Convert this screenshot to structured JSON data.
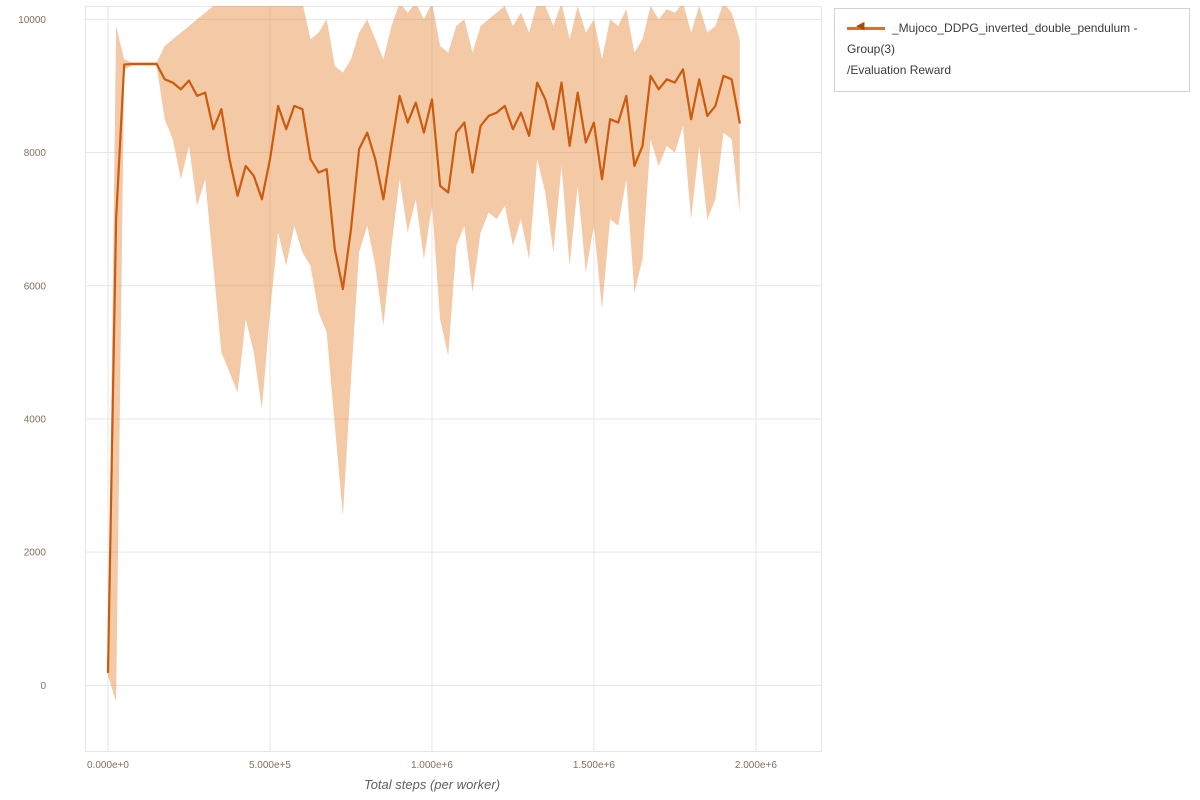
{
  "legend": {
    "marker": "◀",
    "line1": "_Mujoco_DDPG_inverted_double_pendulum - Group(3)",
    "line2": "/Evaluation Reward"
  },
  "colors": {
    "grid": "#e6e6e6",
    "tick_label": "#83705e",
    "axis_title": "#5f5f5f",
    "legend_border": "#d3d3d3",
    "legend_text": "#3b3b3b",
    "marker_color": "#a04d08"
  },
  "chart_data": {
    "type": "line",
    "title": "",
    "xlabel": "Total steps (per worker)",
    "ylabel": "",
    "grid": true,
    "legend_position": "top-right-outside",
    "xlim": [
      -71000,
      2204000
    ],
    "ylim": [
      -1000,
      10200
    ],
    "x_ticks": {
      "values": [
        0,
        500000,
        1000000,
        1500000,
        2000000
      ],
      "labels": [
        "0.000e+0",
        "5.000e+5",
        "1.000e+6",
        "1.500e+6",
        "2.000e+6"
      ]
    },
    "y_ticks": {
      "values": [
        0,
        2000,
        4000,
        6000,
        8000,
        10000
      ],
      "labels": [
        "0",
        "2000",
        "4000",
        "6000",
        "8000",
        "10000"
      ]
    },
    "series": [
      {
        "name": "_Mujoco_DDPG_inverted_double_pendulum - Group(3)/Evaluation Reward",
        "color": "#cb5b0e",
        "line_width": 2.2,
        "band_color": "#e5873a",
        "band_opacity": 0.45,
        "x": [
          0,
          25000,
          50000,
          75000,
          100000,
          125000,
          150000,
          175000,
          200000,
          225000,
          250000,
          275000,
          300000,
          325000,
          350000,
          375000,
          400000,
          425000,
          450000,
          475000,
          500000,
          525000,
          550000,
          575000,
          600000,
          625000,
          650000,
          675000,
          700000,
          725000,
          750000,
          775000,
          800000,
          825000,
          850000,
          875000,
          900000,
          925000,
          950000,
          975000,
          1000000,
          1025000,
          1050000,
          1075000,
          1100000,
          1125000,
          1150000,
          1175000,
          1200000,
          1225000,
          1250000,
          1275000,
          1300000,
          1325000,
          1350000,
          1375000,
          1400000,
          1425000,
          1450000,
          1475000,
          1500000,
          1525000,
          1550000,
          1575000,
          1600000,
          1625000,
          1650000,
          1675000,
          1700000,
          1725000,
          1750000,
          1775000,
          1800000,
          1825000,
          1850000,
          1875000,
          1900000,
          1925000,
          1950000
        ],
        "mean": [
          200,
          7000,
          9320,
          9330,
          9330,
          9330,
          9330,
          9100,
          9050,
          8950,
          9080,
          8850,
          8900,
          8350,
          8650,
          7900,
          7350,
          7800,
          7650,
          7300,
          7900,
          8700,
          8350,
          8700,
          8650,
          7900,
          7700,
          7750,
          6550,
          5950,
          6850,
          8050,
          8300,
          7900,
          7300,
          8100,
          8850,
          8450,
          8750,
          8300,
          8800,
          7500,
          7400,
          8300,
          8450,
          7700,
          8400,
          8550,
          8600,
          8700,
          8350,
          8600,
          8250,
          9050,
          8800,
          8350,
          9050,
          8100,
          8900,
          8150,
          8450,
          7600,
          8500,
          8450,
          8850,
          7800,
          8100,
          9150,
          8950,
          9100,
          9050,
          9250,
          8500,
          9100,
          8550,
          8700,
          9150,
          9100,
          8450
        ],
        "lo": [
          150,
          -250,
          9250,
          9300,
          9300,
          9300,
          9300,
          8500,
          8200,
          7600,
          8100,
          7200,
          7600,
          6300,
          5000,
          4700,
          4400,
          5500,
          5000,
          4150,
          5600,
          6800,
          6300,
          6900,
          6500,
          6300,
          5600,
          5300,
          3900,
          2550,
          4600,
          6500,
          6900,
          6300,
          5400,
          6600,
          7600,
          6800,
          7300,
          6400,
          7200,
          5500,
          4950,
          6600,
          6900,
          5900,
          6800,
          7100,
          7000,
          7200,
          6600,
          7000,
          6400,
          7900,
          7400,
          6500,
          7800,
          6300,
          7500,
          6200,
          6900,
          5650,
          7000,
          6900,
          7600,
          5900,
          6400,
          8200,
          7800,
          8100,
          8000,
          8400,
          7000,
          8100,
          7000,
          7300,
          8300,
          8200,
          7100
        ],
        "hi": [
          250,
          9900,
          9400,
          9350,
          9350,
          9350,
          9350,
          9600,
          9700,
          9800,
          9900,
          10000,
          10100,
          10200,
          10250,
          10250,
          10250,
          10250,
          10250,
          10250,
          10250,
          10250,
          10250,
          10250,
          10250,
          9700,
          9800,
          10000,
          9300,
          9200,
          9400,
          9800,
          10000,
          9700,
          9400,
          9900,
          10250,
          10100,
          10250,
          10000,
          10250,
          9600,
          9500,
          9900,
          10000,
          9500,
          9900,
          10000,
          10100,
          10200,
          9900,
          10100,
          9800,
          10250,
          10200,
          9900,
          10250,
          9700,
          10200,
          9800,
          10000,
          9400,
          10000,
          9900,
          10150,
          9500,
          9700,
          10200,
          10000,
          10150,
          10100,
          10250,
          9800,
          10200,
          9800,
          9900,
          10250,
          10100,
          9700
        ]
      }
    ]
  }
}
